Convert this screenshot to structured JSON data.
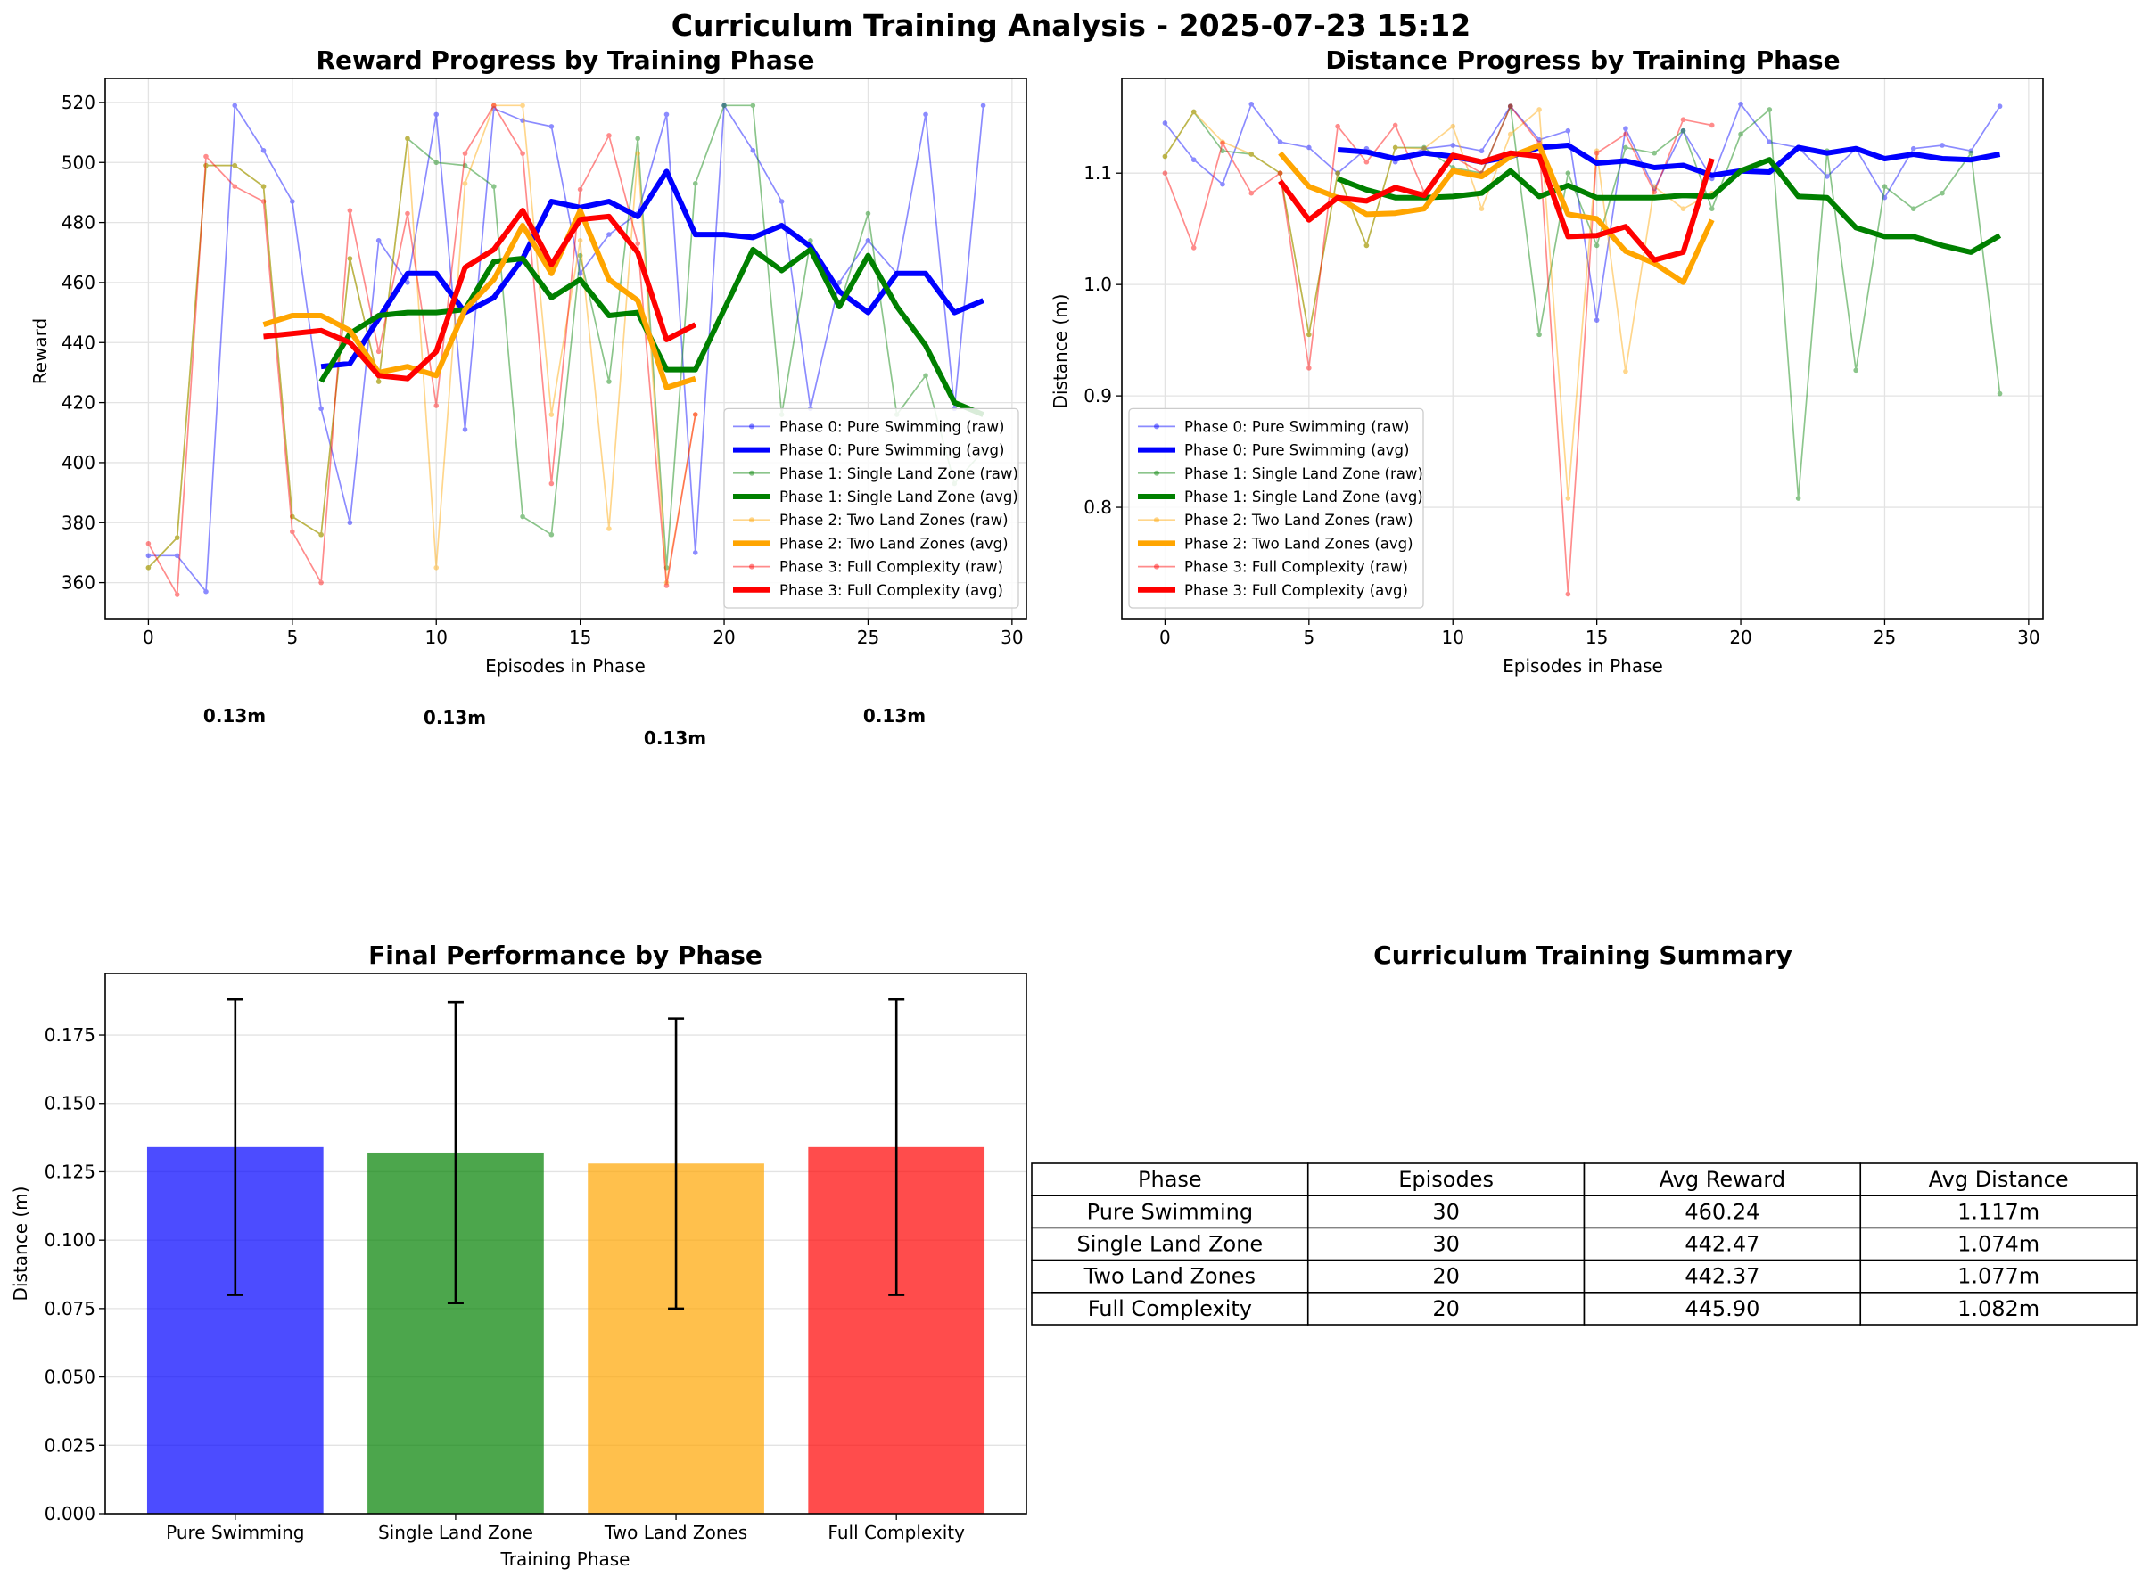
{
  "suptitle": "Curriculum Training Analysis - 2025-07-23 15:12",
  "colors": {
    "phase0": "#0000ff",
    "phase1": "#008000",
    "phase2": "#ffa500",
    "phase3": "#ff0000"
  },
  "chart_data": [
    {
      "type": "line",
      "title": "Reward Progress by Training Phase",
      "xlabel": "Episodes in Phase",
      "ylabel": "Reward",
      "xlim": [
        -1.5,
        30.5
      ],
      "ylim": [
        348,
        528
      ],
      "xticks": [
        "0",
        "5",
        "10",
        "15",
        "20",
        "25",
        "30"
      ],
      "yticks": [
        "360",
        "380",
        "400",
        "420",
        "440",
        "460",
        "480",
        "500",
        "520"
      ],
      "grid": true,
      "legend_position": "lower-right",
      "legend": [
        "Phase 0: Pure Swimming (raw)",
        "Phase 0: Pure Swimming (avg)",
        "Phase 1: Single Land Zone (raw)",
        "Phase 1: Single Land Zone (avg)",
        "Phase 2: Two Land Zones (raw)",
        "Phase 2: Two Land Zones (avg)",
        "Phase 3: Full Complexity (raw)",
        "Phase 3: Full Complexity (avg)"
      ],
      "series": [
        {
          "name": "Phase 0: Pure Swimming (raw)",
          "color": "#0000ff",
          "kind": "raw",
          "x0": 0,
          "values": [
            369,
            369,
            357,
            519,
            504,
            487,
            418,
            380,
            474,
            460,
            516,
            411,
            518,
            514,
            512,
            463,
            476,
            483,
            516,
            370,
            519,
            504,
            487,
            418,
            460,
            474,
            463,
            516,
            418,
            519
          ]
        },
        {
          "name": "Phase 0: Pure Swimming (avg)",
          "color": "#0000ff",
          "kind": "avg",
          "x0": 6,
          "values": [
            432,
            433,
            448,
            463,
            463,
            450,
            455,
            468,
            487,
            485,
            487,
            482,
            497,
            476,
            476,
            475,
            479,
            472,
            457,
            450,
            463,
            463,
            450,
            454
          ]
        },
        {
          "name": "Phase 1: Single Land Zone (raw)",
          "color": "#008000",
          "kind": "raw",
          "x0": 0,
          "values": [
            365,
            375,
            499,
            499,
            492,
            382,
            376,
            468,
            427,
            508,
            500,
            499,
            492,
            382,
            376,
            469,
            427,
            508,
            365,
            493,
            519,
            519,
            416,
            474,
            452,
            483,
            416,
            429,
            393,
            404
          ]
        },
        {
          "name": "Phase 1: Single Land Zone (avg)",
          "color": "#008000",
          "kind": "avg",
          "x0": 6,
          "values": [
            427,
            443,
            449,
            450,
            450,
            451,
            467,
            468,
            455,
            461,
            449,
            450,
            431,
            431,
            451,
            471,
            464,
            471,
            452,
            469,
            452,
            439,
            420,
            416
          ]
        },
        {
          "name": "Phase 2: Two Land Zones (raw)",
          "color": "#ffa500",
          "kind": "raw",
          "x0": 0,
          "values": [
            365,
            375,
            499,
            499,
            492,
            382,
            376,
            468,
            427,
            508,
            365,
            493,
            519,
            519,
            416,
            474,
            378,
            503,
            360,
            416
          ]
        },
        {
          "name": "Phase 2: Two Land Zones (avg)",
          "color": "#ffa500",
          "kind": "avg",
          "x0": 4,
          "values": [
            446,
            449,
            449,
            444,
            430,
            432,
            429,
            451,
            461,
            479,
            463,
            484,
            461,
            454,
            425,
            428
          ]
        },
        {
          "name": "Phase 3: Full Complexity (raw)",
          "color": "#ff0000",
          "kind": "raw",
          "x0": 0,
          "values": [
            373,
            356,
            502,
            492,
            487,
            377,
            360,
            484,
            437,
            483,
            419,
            503,
            519,
            503,
            393,
            491,
            509,
            473,
            359,
            416
          ]
        },
        {
          "name": "Phase 3: Full Complexity (avg)",
          "color": "#ff0000",
          "kind": "avg",
          "x0": 4,
          "values": [
            442,
            443,
            444,
            440,
            429,
            428,
            437,
            465,
            471,
            484,
            466,
            481,
            482,
            470,
            441,
            446
          ]
        }
      ],
      "annotations": [
        "0.13m",
        "0.13m",
        "0.13m",
        "0.13m"
      ]
    },
    {
      "type": "line",
      "title": "Distance Progress by Training Phase",
      "xlabel": "Episodes in Phase",
      "ylabel": "Distance (m)",
      "xlim": [
        -1.5,
        30.5
      ],
      "ylim": [
        0.7,
        1.185
      ],
      "xticks": [
        "0",
        "5",
        "10",
        "15",
        "20",
        "25",
        "30"
      ],
      "yticks": [
        "0.8",
        "0.9",
        "1.0",
        "1.1"
      ],
      "grid": true,
      "legend_position": "lower-left",
      "legend": [
        "Phase 0: Pure Swimming (raw)",
        "Phase 0: Pure Swimming (avg)",
        "Phase 1: Single Land Zone (raw)",
        "Phase 1: Single Land Zone (avg)",
        "Phase 2: Two Land Zones (raw)",
        "Phase 2: Two Land Zones (avg)",
        "Phase 3: Full Complexity (raw)",
        "Phase 3: Full Complexity (avg)"
      ],
      "series": [
        {
          "name": "Phase 0: Pure Swimming (raw)",
          "color": "#0000ff",
          "kind": "raw",
          "x0": 0,
          "values": [
            1.145,
            1.112,
            1.09,
            1.162,
            1.128,
            1.123,
            1.1,
            1.122,
            1.11,
            1.122,
            1.125,
            1.12,
            1.16,
            1.13,
            1.138,
            0.968,
            1.14,
            1.086,
            1.138,
            1.095,
            1.162,
            1.128,
            1.123,
            1.097,
            1.122,
            1.078,
            1.122,
            1.125,
            1.12,
            1.16
          ]
        },
        {
          "name": "Phase 0: Pure Swimming (avg)",
          "color": "#0000ff",
          "kind": "avg",
          "x0": 6,
          "values": [
            1.121,
            1.119,
            1.113,
            1.118,
            1.115,
            1.11,
            1.115,
            1.123,
            1.125,
            1.109,
            1.111,
            1.105,
            1.107,
            1.098,
            1.102,
            1.101,
            1.123,
            1.118,
            1.122,
            1.113,
            1.117,
            1.113,
            1.112,
            1.117
          ]
        },
        {
          "name": "Phase 1: Single Land Zone (raw)",
          "color": "#008000",
          "kind": "raw",
          "x0": 0,
          "values": [
            1.115,
            1.155,
            1.12,
            1.117,
            1.1,
            0.955,
            1.1,
            1.035,
            1.123,
            1.123,
            1.105,
            1.1,
            1.16,
            0.955,
            1.1,
            1.035,
            1.123,
            1.118,
            1.138,
            1.068,
            1.135,
            1.157,
            0.808,
            1.12,
            0.923,
            1.088,
            1.068,
            1.082,
            1.118,
            0.902
          ]
        },
        {
          "name": "Phase 1: Single Land Zone (avg)",
          "color": "#008000",
          "kind": "avg",
          "x0": 6,
          "values": [
            1.095,
            1.085,
            1.078,
            1.078,
            1.079,
            1.082,
            1.102,
            1.079,
            1.089,
            1.078,
            1.078,
            1.078,
            1.08,
            1.079,
            1.102,
            1.112,
            1.079,
            1.078,
            1.051,
            1.043,
            1.043,
            1.035,
            1.029,
            1.044
          ]
        },
        {
          "name": "Phase 2: Two Land Zones (raw)",
          "color": "#ffa500",
          "kind": "raw",
          "x0": 0,
          "values": [
            1.115,
            1.155,
            1.128,
            1.117,
            1.1,
            0.955,
            1.1,
            1.035,
            1.123,
            1.122,
            1.142,
            1.068,
            1.135,
            1.157,
            0.808,
            1.12,
            0.922,
            1.088,
            1.068,
            1.082
          ]
        },
        {
          "name": "Phase 2: Two Land Zones (avg)",
          "color": "#ffa500",
          "kind": "avg",
          "x0": 4,
          "values": [
            1.118,
            1.088,
            1.078,
            1.063,
            1.064,
            1.068,
            1.102,
            1.097,
            1.115,
            1.125,
            1.063,
            1.059,
            1.03,
            1.019,
            1.002,
            1.058
          ]
        },
        {
          "name": "Phase 3: Full Complexity (raw)",
          "color": "#ff0000",
          "kind": "raw",
          "x0": 0,
          "values": [
            1.1,
            1.033,
            1.127,
            1.082,
            1.1,
            0.925,
            1.142,
            1.11,
            1.143,
            1.083,
            1.115,
            1.1,
            1.16,
            1.127,
            0.722,
            1.118,
            1.135,
            1.083,
            1.148,
            1.143
          ]
        },
        {
          "name": "Phase 3: Full Complexity (avg)",
          "color": "#ff0000",
          "kind": "avg",
          "x0": 4,
          "values": [
            1.093,
            1.058,
            1.078,
            1.075,
            1.087,
            1.08,
            1.116,
            1.11,
            1.118,
            1.115,
            1.043,
            1.044,
            1.052,
            1.022,
            1.029,
            1.113
          ]
        }
      ]
    },
    {
      "type": "bar",
      "title": "Final Performance by Phase",
      "xlabel": "Training Phase",
      "ylabel": "Distance (m)",
      "ylim": [
        0,
        0.1975
      ],
      "yticks": [
        "0.000",
        "0.025",
        "0.050",
        "0.075",
        "0.100",
        "0.125",
        "0.150",
        "0.175"
      ],
      "grid": true,
      "categories": [
        "Pure Swimming",
        "Single Land Zone",
        "Two Land Zones",
        "Full Complexity"
      ],
      "values": [
        0.134,
        0.132,
        0.128,
        0.134
      ],
      "errors": [
        0.054,
        0.055,
        0.053,
        0.054
      ],
      "colors": [
        "#0000ff",
        "#008000",
        "#ffa500",
        "#ff0000"
      ]
    },
    {
      "type": "table",
      "title": "Curriculum Training Summary",
      "columns": [
        "Phase",
        "Episodes",
        "Avg Reward",
        "Avg Distance"
      ],
      "rows": [
        [
          "Pure Swimming",
          "30",
          "460.24",
          "1.117m"
        ],
        [
          "Single Land Zone",
          "30",
          "442.47",
          "1.074m"
        ],
        [
          "Two Land Zones",
          "20",
          "442.37",
          "1.077m"
        ],
        [
          "Full Complexity",
          "20",
          "445.90",
          "1.082m"
        ]
      ]
    }
  ]
}
